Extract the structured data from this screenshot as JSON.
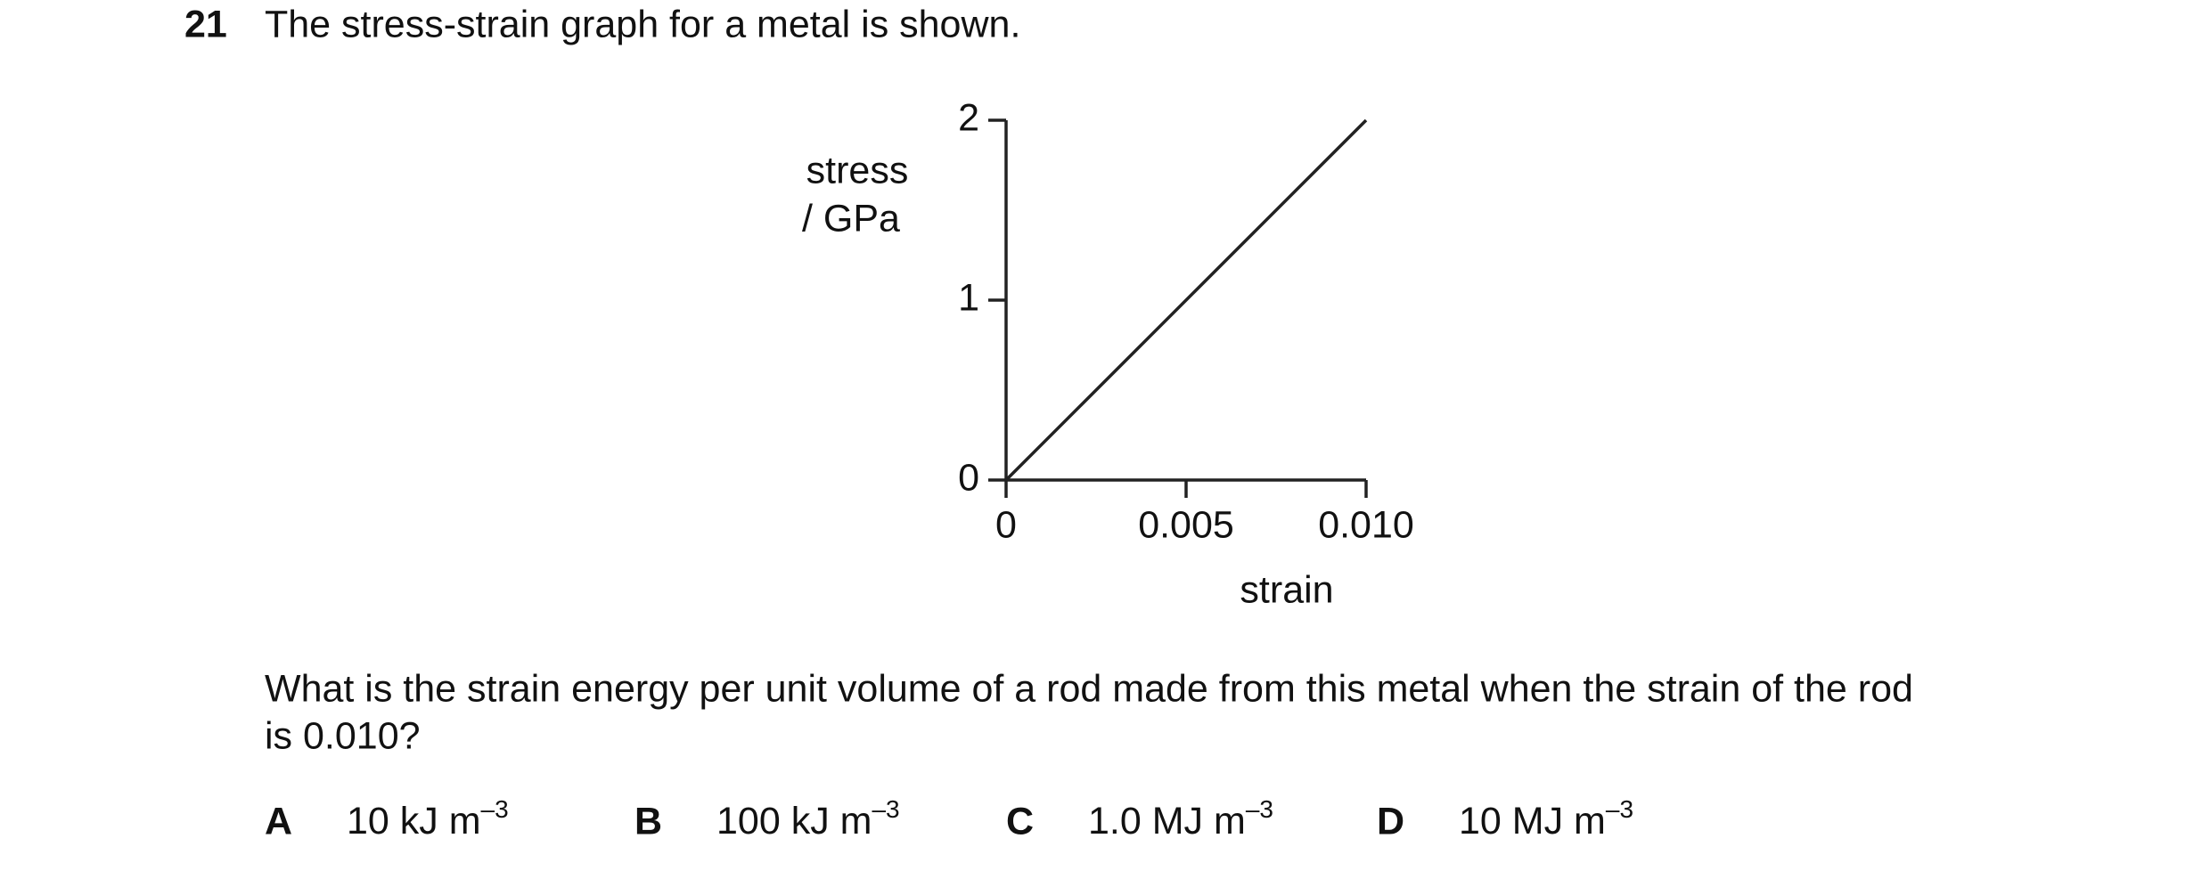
{
  "question": {
    "number": "21",
    "intro": "The stress-strain graph for a metal is shown.",
    "prompt": [
      "What is the strain energy per unit volume of a rod made from this metal when the strain of the rod",
      "is 0.010?"
    ]
  },
  "figure": {
    "type": "line",
    "x": [
      0,
      0.01
    ],
    "values": [
      0,
      2
    ],
    "xlim": [
      0,
      0.01
    ],
    "ylim": [
      0,
      2
    ],
    "xticks": [
      0,
      0.005,
      {
        "value": 0.01,
        "label": "0.010"
      }
    ],
    "yticks": [
      0,
      1,
      2
    ],
    "ylabel": [
      "stress",
      "/ GPa"
    ],
    "xlabel": "strain"
  },
  "options": [
    {
      "letter": "A",
      "value": "10 kJ m",
      "exponent": "–3"
    },
    {
      "letter": "B",
      "value": "100 kJ m",
      "exponent": "–3"
    },
    {
      "letter": "C",
      "value": "1.0 MJ m",
      "exponent": "–3"
    },
    {
      "letter": "D",
      "value": "10 MJ m",
      "exponent": "–3"
    }
  ]
}
